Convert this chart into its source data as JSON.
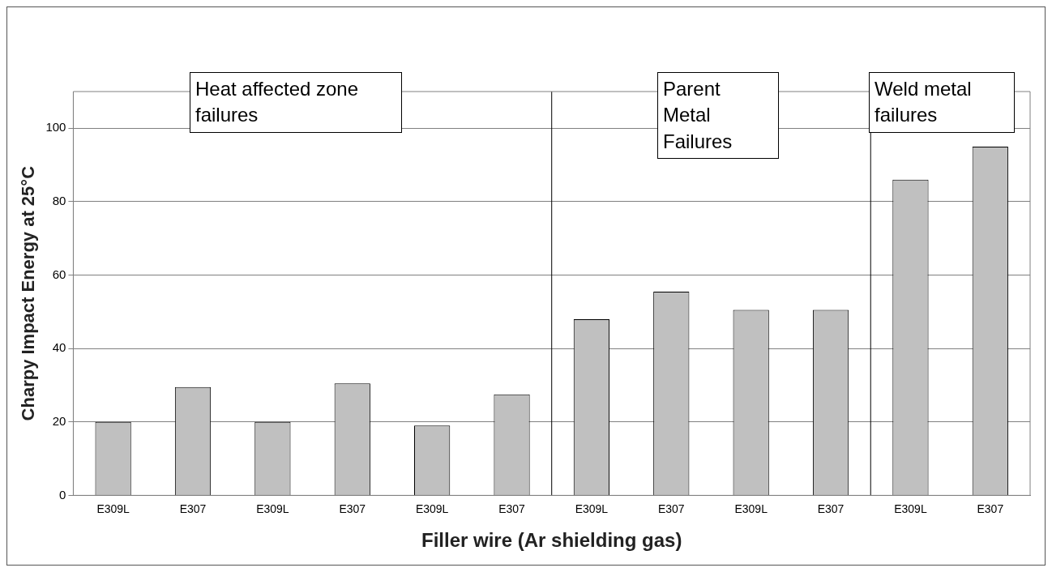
{
  "chart_data": {
    "type": "bar",
    "xlabel": "Filler wire (Ar shielding gas)",
    "ylabel": "Charpy Impact Energy at 25°C",
    "categories": [
      "E309L",
      "E307",
      "E309L",
      "E307",
      "E309L",
      "E307",
      "E309L",
      "E307",
      "E309L",
      "E307",
      "E309L",
      "E307"
    ],
    "values": [
      20,
      29.5,
      20,
      30.5,
      19,
      27.5,
      48,
      55.5,
      50.5,
      50.5,
      86,
      95
    ],
    "color": "#c0c0c0",
    "ylim": [
      0,
      110
    ],
    "yticks": [
      0,
      20,
      40,
      60,
      80,
      100
    ],
    "grid": "y",
    "legend": false,
    "annotations": [
      "Heat affected zone failures",
      "Parent Metal Failures",
      "Weld metal failures"
    ]
  }
}
